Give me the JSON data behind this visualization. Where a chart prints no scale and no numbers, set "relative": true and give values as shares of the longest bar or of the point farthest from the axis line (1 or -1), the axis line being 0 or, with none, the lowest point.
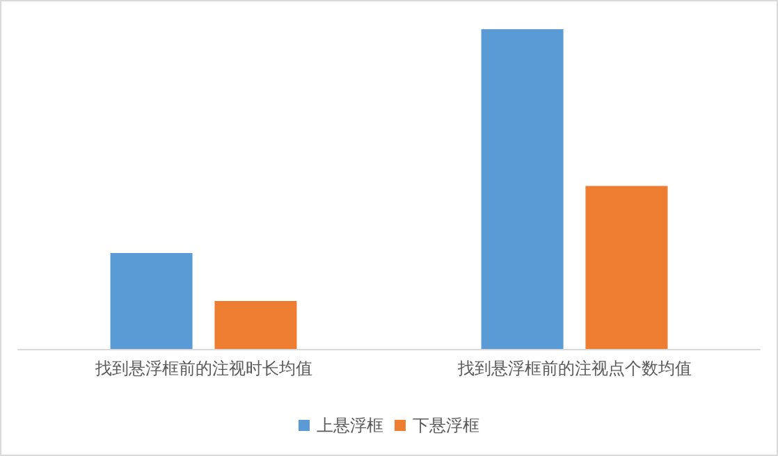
{
  "chart_data": {
    "type": "bar",
    "relative": true,
    "categories": [
      "找到悬浮框前的注视时长均值",
      "找到悬浮框前的注视点个数均值"
    ],
    "series": [
      {
        "name": "上悬浮框",
        "color": "#5b9bd5",
        "values": [
          0.3,
          1
        ]
      },
      {
        "name": "下悬浮框",
        "color": "#ed7d31",
        "values": [
          0.15,
          0.51
        ]
      }
    ],
    "legend": "bottom"
  }
}
